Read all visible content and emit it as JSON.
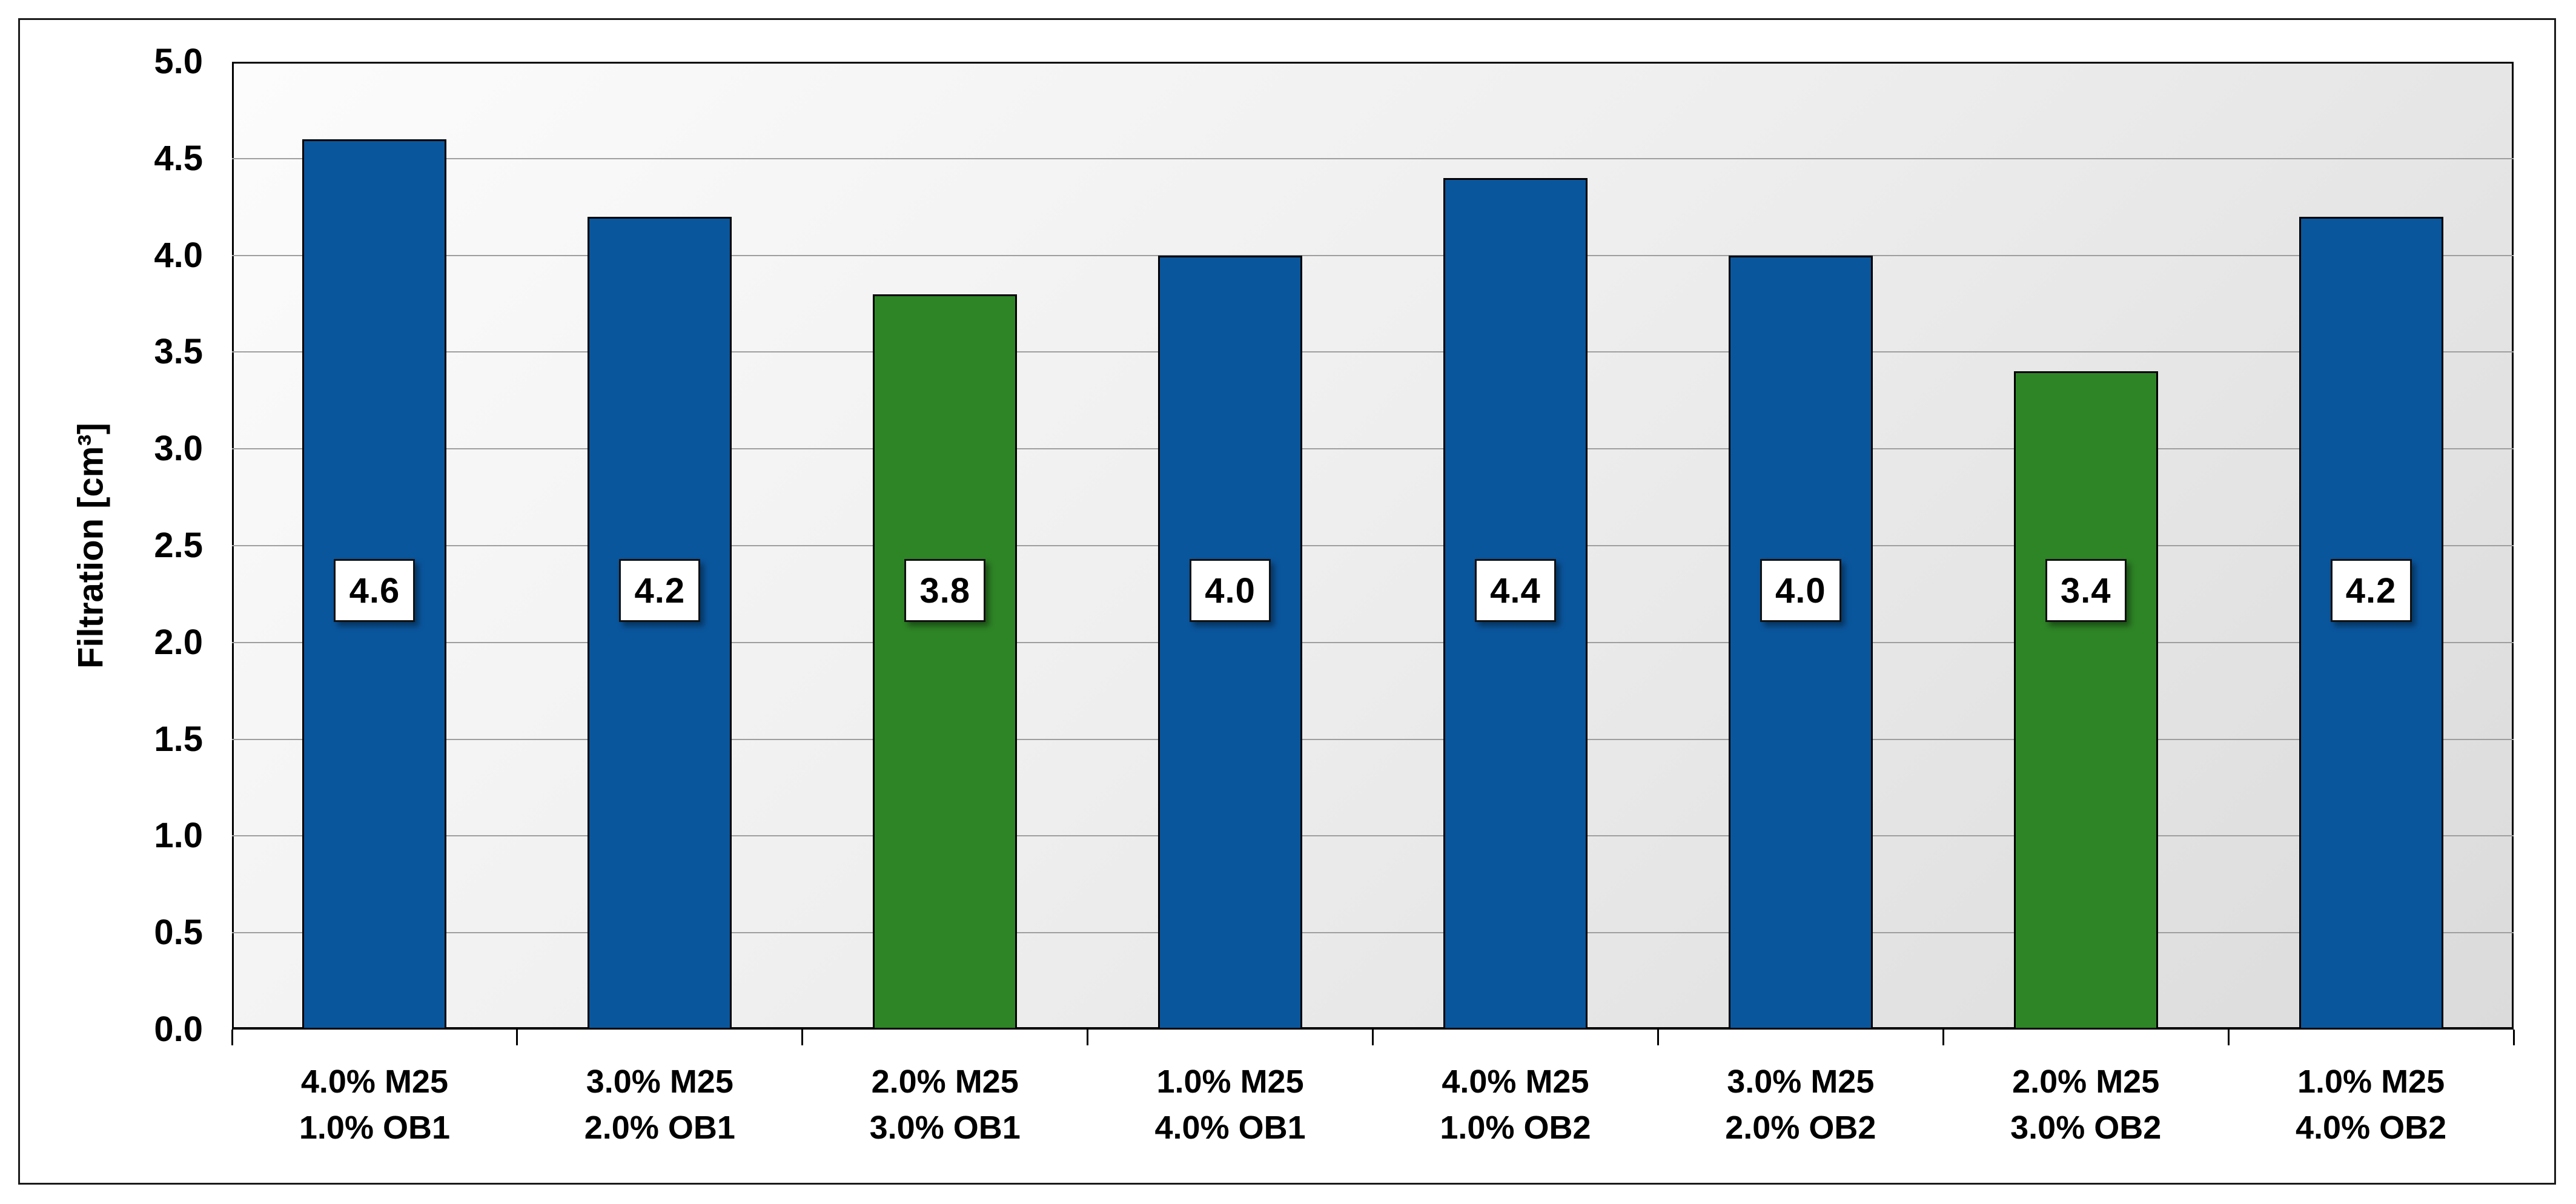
{
  "chart_data": {
    "type": "bar",
    "title": "",
    "xlabel": "",
    "ylabel": "Filtration [cm³]",
    "ylim": [
      0.0,
      5.0
    ],
    "ytick_step": 0.5,
    "ytick_labels": [
      "0.0",
      "0.5",
      "1.0",
      "1.5",
      "2.0",
      "2.5",
      "3.0",
      "3.5",
      "4.0",
      "4.5",
      "5.0"
    ],
    "categories": [
      "4.0% M25\n1.0% OB1",
      "3.0% M25\n2.0% OB1",
      "2.0% M25\n3.0% OB1",
      "1.0% M25\n4.0% OB1",
      "4.0% M25\n1.0% OB2",
      "3.0% M25\n2.0% OB2",
      "2.0% M25\n3.0% OB2",
      "1.0% M25\n4.0% OB2"
    ],
    "values": [
      4.6,
      4.2,
      3.8,
      4.0,
      4.4,
      4.0,
      3.4,
      4.2
    ],
    "value_labels": [
      "4.6",
      "4.2",
      "3.8",
      "4.0",
      "4.4",
      "4.0",
      "3.4",
      "4.2"
    ],
    "bar_color_keys": [
      "blue",
      "blue",
      "green",
      "blue",
      "blue",
      "blue",
      "green",
      "blue"
    ],
    "colors": {
      "blue": "#0A569D",
      "green": "#2E8526",
      "bar_outline": "#000000",
      "gridline": "#9E9E9E",
      "axis_line": "#000000",
      "label_box_bg": "#FFFFFF",
      "label_box_border": "#111111"
    },
    "grid": true,
    "legend": false,
    "plot_bg_gradient": [
      "#FCFCFC",
      "#DBDBDB"
    ]
  }
}
